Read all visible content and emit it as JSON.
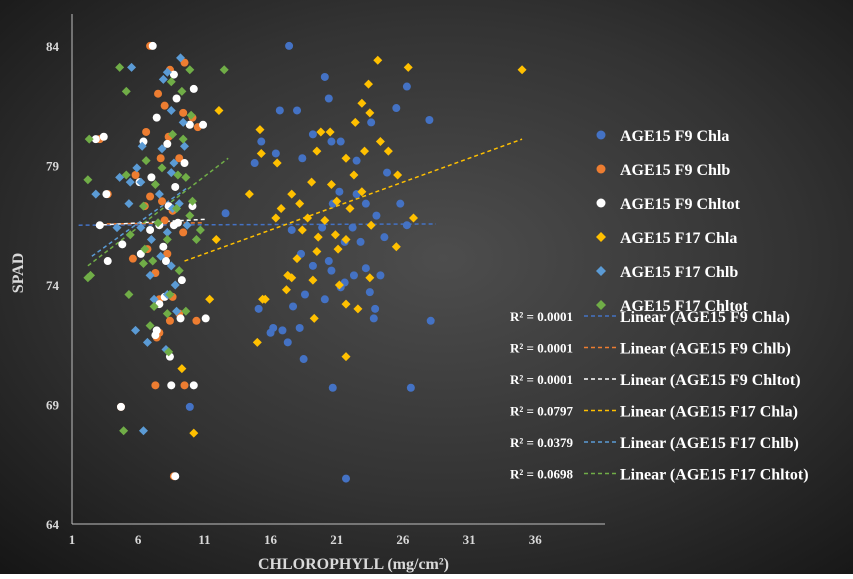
{
  "chart_data": {
    "type": "scatter",
    "xlabel": "CHLOROPHYLL (mg/cm²)",
    "ylabel": "SPAD",
    "xlim": [
      1,
      39
    ],
    "ylim": [
      64,
      85
    ],
    "x_ticks": [
      1,
      6,
      11,
      16,
      21,
      26,
      31,
      36
    ],
    "y_ticks": [
      64,
      69,
      74,
      79,
      84
    ],
    "x_tick_labels": [
      "1",
      "6",
      "11",
      "16",
      "21",
      "26",
      "31",
      "36"
    ],
    "y_tick_labels": [
      "64",
      "69",
      "74",
      "79",
      "84"
    ],
    "grid": false,
    "legend_position": "right",
    "series": [
      {
        "name": "AGE15 F9 Chla",
        "marker": "circle",
        "color": "#4472C4",
        "points": [
          [
            17.4,
            84
          ],
          [
            26.3,
            82.3
          ],
          [
            20.1,
            82.7
          ],
          [
            28,
            80.9
          ],
          [
            25.5,
            81.4
          ],
          [
            19.2,
            80.3
          ],
          [
            20.6,
            80
          ],
          [
            18,
            81.3
          ],
          [
            16.7,
            81.3
          ],
          [
            20.4,
            81.8
          ],
          [
            22.5,
            79.2
          ],
          [
            23.6,
            80.8
          ],
          [
            18.4,
            79.3
          ],
          [
            16.4,
            79.5
          ],
          [
            15.3,
            80
          ],
          [
            14.8,
            79.1
          ],
          [
            21.3,
            80
          ],
          [
            24.8,
            78.7
          ],
          [
            22.5,
            77.8
          ],
          [
            23.2,
            77.4
          ],
          [
            24,
            76.9
          ],
          [
            25.8,
            77.4
          ],
          [
            21.2,
            77.9
          ],
          [
            20.7,
            77.4
          ],
          [
            22.2,
            76.4
          ],
          [
            24.6,
            76
          ],
          [
            26.3,
            76.5
          ],
          [
            19.9,
            76.4
          ],
          [
            21.6,
            75.8
          ],
          [
            18.3,
            75.3
          ],
          [
            19.2,
            74.8
          ],
          [
            20.6,
            74.6
          ],
          [
            21.6,
            74.1
          ],
          [
            22.3,
            74.4
          ],
          [
            23.2,
            74.7
          ],
          [
            24.3,
            74.4
          ],
          [
            18.6,
            73.6
          ],
          [
            17.7,
            73.1
          ],
          [
            18.2,
            72.2
          ],
          [
            16.2,
            72.2
          ],
          [
            16,
            72
          ],
          [
            16.9,
            72.1
          ],
          [
            15.1,
            73
          ],
          [
            20.1,
            73.4
          ],
          [
            21.3,
            73.9
          ],
          [
            23.9,
            73
          ],
          [
            23.8,
            72.6
          ],
          [
            28.1,
            72.5
          ],
          [
            17.3,
            71.6
          ],
          [
            18.5,
            70.9
          ],
          [
            20.7,
            69.7
          ],
          [
            26.6,
            69.7
          ],
          [
            12.6,
            77
          ],
          [
            9.9,
            68.9
          ],
          [
            21.7,
            65.9
          ],
          [
            17.6,
            76.3
          ],
          [
            23.5,
            73.7
          ],
          [
            20.4,
            75
          ],
          [
            22.8,
            75.8
          ]
        ]
      },
      {
        "name": "AGE15 F9 Chlb",
        "marker": "circle",
        "color": "#ED7D31",
        "points": [
          [
            6.9,
            84
          ],
          [
            8.4,
            83
          ],
          [
            9.5,
            83.3
          ],
          [
            7.5,
            82
          ],
          [
            8,
            81.5
          ],
          [
            9.4,
            81.2
          ],
          [
            10.1,
            81
          ],
          [
            6.6,
            80.4
          ],
          [
            8.3,
            80.2
          ],
          [
            9.1,
            79.3
          ],
          [
            7.7,
            79.3
          ],
          [
            5.8,
            78.6
          ],
          [
            7.8,
            77.5
          ],
          [
            6.9,
            77.7
          ],
          [
            8.6,
            77.1
          ],
          [
            3.7,
            77.8
          ],
          [
            9.4,
            76.2
          ],
          [
            6.7,
            75.5
          ],
          [
            8.2,
            75.3
          ],
          [
            5.6,
            75.1
          ],
          [
            7.3,
            74.5
          ],
          [
            8.6,
            73.5
          ],
          [
            7.6,
            73.4
          ],
          [
            7.6,
            72
          ],
          [
            7.4,
            71.8
          ],
          [
            8.4,
            72.5
          ],
          [
            10.4,
            72.5
          ],
          [
            9.1,
            72.8
          ],
          [
            7.3,
            69.8
          ],
          [
            9.5,
            69.8
          ],
          [
            4.7,
            68.9
          ],
          [
            8.7,
            66
          ],
          [
            6.5,
            77.3
          ],
          [
            8,
            76.7
          ],
          [
            3.1,
            80.1
          ],
          [
            10.5,
            80.6
          ]
        ]
      },
      {
        "name": "AGE15 F9 Chltot",
        "marker": "circle",
        "color": "#FFFFFF",
        "points": [
          [
            7.1,
            84
          ],
          [
            8.7,
            82.8
          ],
          [
            10.2,
            82.2
          ],
          [
            8.9,
            81.8
          ],
          [
            7.4,
            81
          ],
          [
            9.9,
            80.7
          ],
          [
            10.9,
            80.7
          ],
          [
            3.4,
            80.2
          ],
          [
            2.8,
            80.1
          ],
          [
            6.4,
            80
          ],
          [
            8.2,
            79.9
          ],
          [
            9.5,
            79.1
          ],
          [
            7,
            78.5
          ],
          [
            8.8,
            78.1
          ],
          [
            6.1,
            78.3
          ],
          [
            10.1,
            77.3
          ],
          [
            3.6,
            77.8
          ],
          [
            8.3,
            77.3
          ],
          [
            9,
            76.6
          ],
          [
            7.6,
            76.5
          ],
          [
            6.9,
            76.3
          ],
          [
            7.9,
            75.6
          ],
          [
            8.1,
            75
          ],
          [
            4.8,
            75.7
          ],
          [
            3.7,
            75
          ],
          [
            6.2,
            75.3
          ],
          [
            9.3,
            74.2
          ],
          [
            8,
            73.5
          ],
          [
            7.6,
            73.2
          ],
          [
            9.2,
            72.6
          ],
          [
            7.4,
            72.1
          ],
          [
            11.1,
            72.6
          ],
          [
            7.3,
            71.9
          ],
          [
            8.4,
            71
          ],
          [
            8.5,
            69.8
          ],
          [
            10.2,
            69.8
          ],
          [
            4.7,
            68.9
          ],
          [
            8.8,
            66
          ],
          [
            3.1,
            76.5
          ],
          [
            8.7,
            76.5
          ]
        ]
      },
      {
        "name": "AGE15 F17 Chla",
        "marker": "diamond",
        "color": "#FFC000",
        "points": [
          [
            35,
            83
          ],
          [
            24.1,
            83.4
          ],
          [
            26.4,
            83.1
          ],
          [
            23.4,
            82.4
          ],
          [
            22.9,
            81.6
          ],
          [
            23.5,
            81.2
          ],
          [
            22.4,
            80.8
          ],
          [
            20.5,
            80.4
          ],
          [
            24.3,
            80
          ],
          [
            19.5,
            79.6
          ],
          [
            21.7,
            79.3
          ],
          [
            15.2,
            80.5
          ],
          [
            16.5,
            79.1
          ],
          [
            19.1,
            78.3
          ],
          [
            17.6,
            77.8
          ],
          [
            18.2,
            77.4
          ],
          [
            21,
            77.5
          ],
          [
            22,
            77.2
          ],
          [
            23.6,
            76.5
          ],
          [
            16.8,
            77.2
          ],
          [
            20.1,
            76.7
          ],
          [
            18.4,
            76.3
          ],
          [
            19.6,
            76
          ],
          [
            21.7,
            75.9
          ],
          [
            25.5,
            75.6
          ],
          [
            21.1,
            75.5
          ],
          [
            19.5,
            75.4
          ],
          [
            18,
            75.1
          ],
          [
            17.3,
            74.4
          ],
          [
            17.6,
            74.3
          ],
          [
            19.2,
            74.2
          ],
          [
            21.2,
            74
          ],
          [
            23.5,
            74.3
          ],
          [
            15.6,
            73.4
          ],
          [
            15.4,
            73.4
          ],
          [
            17.2,
            73.8
          ],
          [
            21.7,
            73.2
          ],
          [
            22.6,
            73
          ],
          [
            19.3,
            72.6
          ],
          [
            15,
            71.6
          ],
          [
            21.7,
            71
          ],
          [
            11.4,
            73.4
          ],
          [
            9.3,
            70.5
          ],
          [
            10.2,
            67.8
          ],
          [
            12.1,
            81.3
          ],
          [
            14.4,
            77.8
          ],
          [
            16.4,
            76.8
          ],
          [
            20.6,
            78.2
          ],
          [
            22.3,
            78.6
          ],
          [
            23.1,
            79.6
          ],
          [
            25.6,
            78.6
          ],
          [
            15.3,
            79.5
          ],
          [
            18.8,
            76.8
          ],
          [
            20.9,
            76.1
          ],
          [
            26.8,
            76.8
          ],
          [
            22.9,
            77.9
          ],
          [
            24.9,
            79.6
          ],
          [
            19.8,
            80.4
          ],
          [
            11.9,
            75.9
          ]
        ]
      },
      {
        "name": "AGE15 F17 Chlb",
        "marker": "diamond",
        "color": "#5B9BD5",
        "points": [
          [
            5.5,
            83.1
          ],
          [
            8.2,
            82.9
          ],
          [
            9.2,
            83.5
          ],
          [
            7.9,
            82.6
          ],
          [
            8.5,
            81.3
          ],
          [
            9.4,
            80.8
          ],
          [
            9.5,
            79.8
          ],
          [
            6.3,
            79.8
          ],
          [
            7.8,
            79.7
          ],
          [
            8.7,
            79.1
          ],
          [
            8.5,
            78.7
          ],
          [
            6.2,
            78.3
          ],
          [
            4.6,
            78.5
          ],
          [
            7.6,
            77.8
          ],
          [
            8.6,
            77.2
          ],
          [
            5.3,
            77.4
          ],
          [
            9.7,
            76.5
          ],
          [
            8.2,
            76.2
          ],
          [
            6.2,
            76.4
          ],
          [
            7,
            75.9
          ],
          [
            7.7,
            75.2
          ],
          [
            8.5,
            74.8
          ],
          [
            6.9,
            74.4
          ],
          [
            8.8,
            74
          ],
          [
            8.2,
            73.6
          ],
          [
            7.2,
            73.4
          ],
          [
            8.9,
            72.9
          ],
          [
            5.8,
            72.1
          ],
          [
            6.7,
            71.6
          ],
          [
            8.1,
            71.3
          ],
          [
            6.4,
            67.9
          ],
          [
            4.4,
            76.4
          ],
          [
            5.4,
            78.3
          ],
          [
            2.8,
            77.8
          ],
          [
            5.9,
            78.9
          ],
          [
            9.1,
            77.4
          ]
        ]
      },
      {
        "name": "AGE15 F17 Chltot",
        "marker": "diamond",
        "color": "#70AD47",
        "points": [
          [
            4.6,
            83.1
          ],
          [
            9.9,
            83
          ],
          [
            12.5,
            83
          ],
          [
            5.1,
            82.1
          ],
          [
            8.5,
            82.5
          ],
          [
            9.3,
            82.1
          ],
          [
            10,
            81.1
          ],
          [
            8.6,
            80.3
          ],
          [
            9.4,
            80.1
          ],
          [
            2.3,
            80.1
          ],
          [
            6.6,
            79.2
          ],
          [
            7.8,
            78.9
          ],
          [
            5.1,
            78.6
          ],
          [
            2.2,
            78.4
          ],
          [
            9,
            78.6
          ],
          [
            10.1,
            77.5
          ],
          [
            8.9,
            77.2
          ],
          [
            6.4,
            77.3
          ],
          [
            9.9,
            76.9
          ],
          [
            7.5,
            76.6
          ],
          [
            5.4,
            76.1
          ],
          [
            8.2,
            75.9
          ],
          [
            6.5,
            75.5
          ],
          [
            7.1,
            75
          ],
          [
            9.1,
            74.6
          ],
          [
            2.2,
            74.3
          ],
          [
            5.3,
            73.6
          ],
          [
            7.2,
            73.1
          ],
          [
            8.2,
            72.8
          ],
          [
            6.9,
            72.3
          ],
          [
            8.3,
            71.2
          ],
          [
            4.9,
            67.9
          ],
          [
            10.4,
            75.9
          ],
          [
            9.6,
            78.5
          ],
          [
            6.4,
            74.9
          ],
          [
            8.4,
            73.6
          ],
          [
            9.6,
            72.9
          ],
          [
            2.4,
            74.4
          ],
          [
            7.3,
            78.2
          ],
          [
            10.7,
            76.3
          ]
        ]
      }
    ],
    "trendlines": [
      {
        "name": "Linear (AGE15 F9 Chla)",
        "r2_label": "R² = 0.0001",
        "color": "#4472C4",
        "x_range": [
          1.5,
          28.5
        ],
        "y_start": 76.5,
        "y_end": 76.55
      },
      {
        "name": "Linear (AGE15 F9 Chlb)",
        "r2_label": "R² = 0.0001",
        "color": "#ED7D31",
        "x_range": [
          3.1,
          10.9
        ],
        "y_start": 76.55,
        "y_end": 76.6
      },
      {
        "name": "Linear (AGE15 F9 Chltot)",
        "r2_label": "R² = 0.0001",
        "color": "#FFFFFF",
        "x_range": [
          2.8,
          11.2
        ],
        "y_start": 76.5,
        "y_end": 76.75
      },
      {
        "name": "Linear (AGE15 F17 Chla)",
        "r2_label": "R² = 0.0797",
        "color": "#FFC000",
        "x_range": [
          9.5,
          35
        ],
        "y_start": 75,
        "y_end": 80.1
      },
      {
        "name": "Linear (AGE15 F17 Chlb)",
        "r2_label": "R² = 0.0379",
        "color": "#5B9BD5",
        "x_range": [
          2.5,
          9.8
        ],
        "y_start": 75.2,
        "y_end": 78.1
      },
      {
        "name": "Linear (AGE15 F17 Chltot)",
        "r2_label": "R² = 0.0698",
        "color": "#70AD47",
        "x_range": [
          2.2,
          12.8
        ],
        "y_start": 74.8,
        "y_end": 79.3
      }
    ]
  }
}
